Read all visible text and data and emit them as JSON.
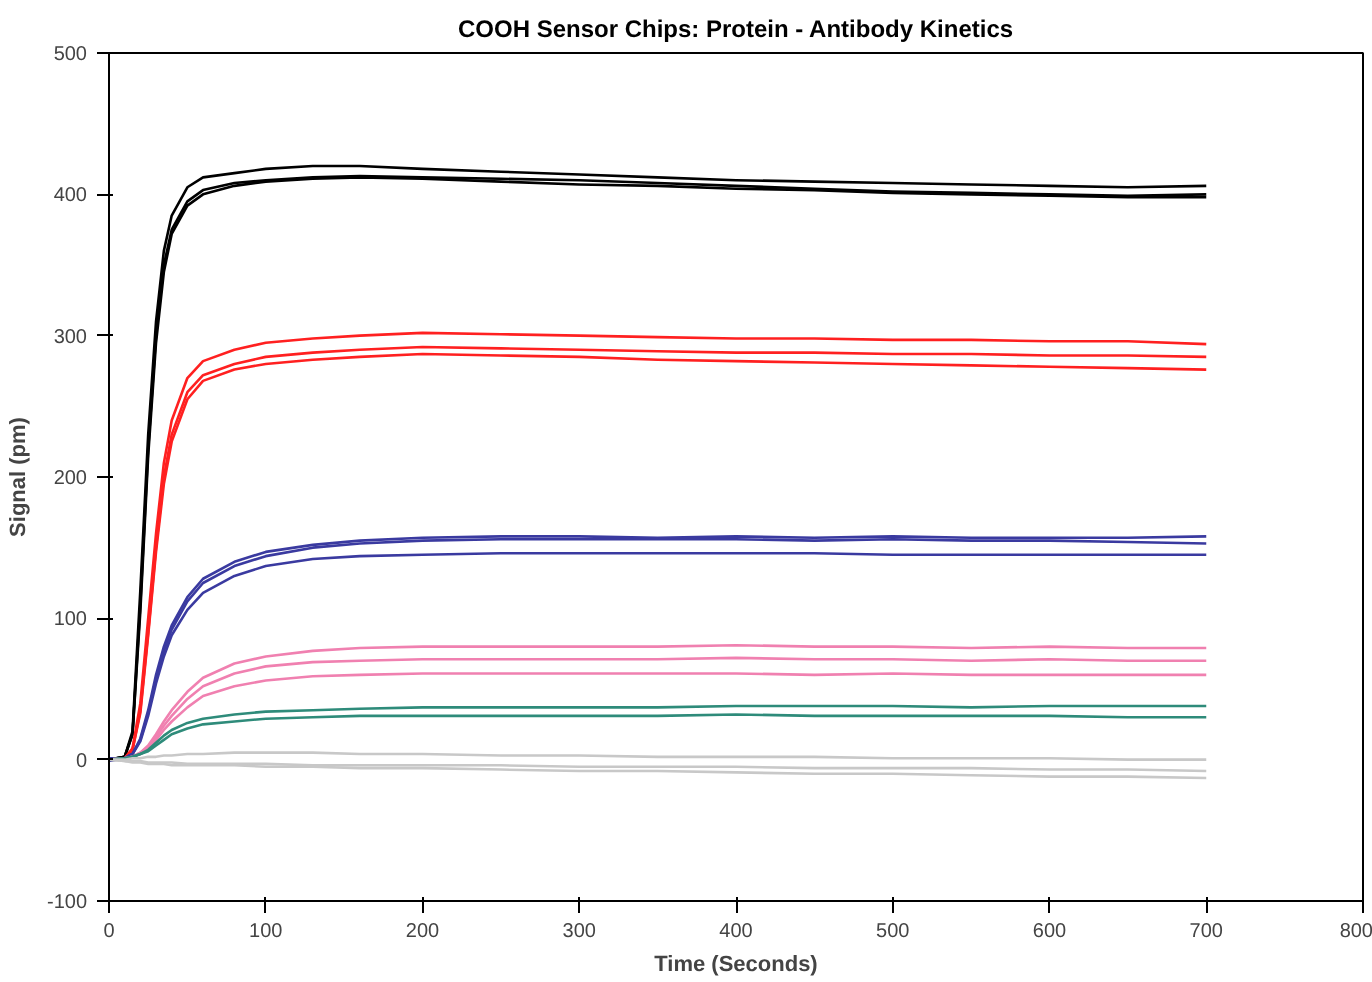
{
  "chart_data": {
    "type": "line",
    "title": "COOH Sensor Chips: Protein - Antibody Kinetics",
    "xlabel": "Time (Seconds)",
    "ylabel": "Signal (pm)",
    "x": [
      0,
      10,
      15,
      20,
      25,
      30,
      35,
      40,
      50,
      60,
      80,
      100,
      130,
      160,
      200,
      250,
      300,
      350,
      400,
      450,
      500,
      550,
      600,
      650,
      700
    ],
    "series": [
      {
        "color": "#000000",
        "values": [
          0,
          2,
          20,
          120,
          230,
          310,
          360,
          385,
          405,
          412,
          415,
          418,
          420,
          420,
          418,
          416,
          414,
          412,
          410,
          409,
          408,
          407,
          406,
          405,
          406
        ]
      },
      {
        "color": "#000000",
        "values": [
          0,
          2,
          18,
          110,
          220,
          300,
          350,
          375,
          395,
          403,
          408,
          410,
          412,
          413,
          412,
          411,
          410,
          408,
          406,
          404,
          402,
          401,
          400,
          399,
          400
        ]
      },
      {
        "color": "#000000",
        "values": [
          0,
          2,
          18,
          105,
          215,
          295,
          345,
          372,
          392,
          400,
          406,
          409,
          411,
          412,
          411,
          409,
          407,
          406,
          404,
          403,
          401,
          400,
          399,
          398,
          398
        ]
      },
      {
        "color": "#ff2020",
        "values": [
          0,
          1,
          8,
          40,
          100,
          160,
          210,
          240,
          270,
          282,
          290,
          295,
          298,
          300,
          302,
          301,
          300,
          299,
          298,
          298,
          297,
          297,
          296,
          296,
          294
        ]
      },
      {
        "color": "#ff2020",
        "values": [
          0,
          1,
          7,
          35,
          90,
          150,
          200,
          230,
          260,
          272,
          280,
          285,
          288,
          290,
          292,
          291,
          290,
          289,
          288,
          288,
          287,
          287,
          286,
          286,
          285
        ]
      },
      {
        "color": "#ff2020",
        "values": [
          0,
          1,
          7,
          33,
          88,
          147,
          195,
          225,
          255,
          268,
          276,
          280,
          283,
          285,
          287,
          286,
          285,
          283,
          282,
          281,
          280,
          279,
          278,
          277,
          276
        ]
      },
      {
        "color": "#3a3aa0",
        "values": [
          1,
          1,
          4,
          15,
          35,
          60,
          80,
          95,
          115,
          128,
          140,
          147,
          152,
          155,
          157,
          158,
          158,
          157,
          158,
          157,
          158,
          157,
          157,
          157,
          158
        ]
      },
      {
        "color": "#3a3aa0",
        "values": [
          -1,
          1,
          4,
          14,
          33,
          57,
          77,
          92,
          112,
          125,
          137,
          144,
          150,
          153,
          155,
          156,
          156,
          156,
          156,
          155,
          156,
          155,
          155,
          154,
          153
        ]
      },
      {
        "color": "#3a3aa0",
        "values": [
          0,
          1,
          4,
          13,
          31,
          54,
          73,
          88,
          106,
          118,
          130,
          137,
          142,
          144,
          145,
          146,
          146,
          146,
          146,
          146,
          145,
          145,
          145,
          145,
          145
        ]
      },
      {
        "color": "#f080b0",
        "values": [
          0,
          1,
          2,
          5,
          10,
          18,
          27,
          35,
          48,
          58,
          68,
          73,
          77,
          79,
          80,
          80,
          80,
          80,
          81,
          80,
          80,
          79,
          80,
          79,
          79
        ]
      },
      {
        "color": "#f080b0",
        "values": [
          0,
          1,
          2,
          5,
          9,
          16,
          24,
          31,
          43,
          52,
          61,
          66,
          69,
          70,
          71,
          71,
          71,
          71,
          72,
          71,
          71,
          70,
          71,
          70,
          70
        ]
      },
      {
        "color": "#f080b0",
        "values": [
          0,
          1,
          2,
          4,
          8,
          14,
          21,
          27,
          37,
          45,
          52,
          56,
          59,
          60,
          61,
          61,
          61,
          61,
          61,
          60,
          61,
          60,
          60,
          60,
          60
        ]
      },
      {
        "color": "#2e8b7a",
        "values": [
          0,
          1,
          2,
          4,
          7,
          12,
          17,
          21,
          26,
          29,
          32,
          34,
          35,
          36,
          37,
          37,
          37,
          37,
          38,
          38,
          38,
          37,
          38,
          38,
          38
        ]
      },
      {
        "color": "#2e8b7a",
        "values": [
          0,
          1,
          2,
          4,
          6,
          10,
          14,
          18,
          22,
          25,
          27,
          29,
          30,
          31,
          31,
          31,
          31,
          31,
          32,
          31,
          31,
          31,
          31,
          30,
          30
        ]
      },
      {
        "color": "#c8c8c8",
        "values": [
          0,
          0,
          1,
          1,
          2,
          2,
          3,
          3,
          4,
          4,
          5,
          5,
          5,
          4,
          4,
          3,
          3,
          2,
          2,
          2,
          1,
          1,
          1,
          0,
          0
        ]
      },
      {
        "color": "#c8c8c8",
        "values": [
          0,
          -1,
          -1,
          -1,
          -2,
          -2,
          -2,
          -2,
          -3,
          -3,
          -3,
          -3,
          -4,
          -4,
          -4,
          -4,
          -5,
          -5,
          -5,
          -6,
          -6,
          -6,
          -7,
          -7,
          -8
        ]
      },
      {
        "color": "#c8c8c8",
        "values": [
          0,
          -1,
          -2,
          -2,
          -3,
          -3,
          -3,
          -4,
          -4,
          -4,
          -4,
          -5,
          -5,
          -6,
          -6,
          -7,
          -8,
          -8,
          -9,
          -10,
          -10,
          -11,
          -12,
          -12,
          -13
        ]
      }
    ],
    "xlim": [
      0,
      800
    ],
    "ylim": [
      -100,
      500
    ],
    "xticks": [
      0,
      100,
      200,
      300,
      400,
      500,
      600,
      700,
      800
    ],
    "yticks": [
      -100,
      0,
      100,
      200,
      300,
      400,
      500
    ],
    "marker": "none",
    "line_style": "solid"
  }
}
